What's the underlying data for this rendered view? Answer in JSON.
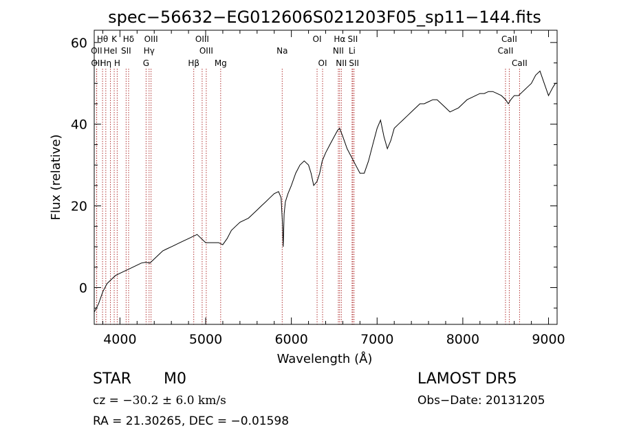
{
  "chart_data": {
    "type": "line",
    "title": "spec−56632−EG012606S021203F05_sp11−144.fits",
    "xlabel": "Wavelength (Å)",
    "ylabel": "Flux (relative)",
    "xlim": [
      3700,
      9100
    ],
    "ylim": [
      -9,
      63
    ],
    "xticks": [
      4000,
      5000,
      6000,
      7000,
      8000,
      9000
    ],
    "yticks": [
      0,
      20,
      40,
      60
    ],
    "grid": false,
    "series": [
      {
        "color": "#000000",
        "points": [
          [
            3700,
            -6
          ],
          [
            3750,
            -4
          ],
          [
            3800,
            -1
          ],
          [
            3850,
            1
          ],
          [
            3900,
            2
          ],
          [
            3950,
            3
          ],
          [
            4000,
            3.5
          ],
          [
            4050,
            4
          ],
          [
            4100,
            4.5
          ],
          [
            4150,
            5
          ],
          [
            4200,
            5.5
          ],
          [
            4250,
            6
          ],
          [
            4300,
            6.2
          ],
          [
            4350,
            6
          ],
          [
            4400,
            7
          ],
          [
            4450,
            8
          ],
          [
            4500,
            9
          ],
          [
            4550,
            9.5
          ],
          [
            4600,
            10
          ],
          [
            4650,
            10.5
          ],
          [
            4700,
            11
          ],
          [
            4750,
            11.5
          ],
          [
            4800,
            12
          ],
          [
            4850,
            12.5
          ],
          [
            4900,
            13
          ],
          [
            4950,
            12
          ],
          [
            5000,
            11
          ],
          [
            5050,
            11
          ],
          [
            5100,
            11
          ],
          [
            5150,
            11
          ],
          [
            5200,
            10.5
          ],
          [
            5250,
            12
          ],
          [
            5300,
            14
          ],
          [
            5350,
            15
          ],
          [
            5400,
            16
          ],
          [
            5450,
            16.5
          ],
          [
            5500,
            17
          ],
          [
            5550,
            18
          ],
          [
            5600,
            19
          ],
          [
            5650,
            20
          ],
          [
            5700,
            21
          ],
          [
            5750,
            22
          ],
          [
            5800,
            23
          ],
          [
            5850,
            23.5
          ],
          [
            5880,
            22
          ],
          [
            5895,
            16
          ],
          [
            5905,
            10
          ],
          [
            5915,
            18
          ],
          [
            5930,
            21
          ],
          [
            5960,
            23
          ],
          [
            6000,
            25
          ],
          [
            6050,
            28
          ],
          [
            6100,
            30
          ],
          [
            6150,
            31
          ],
          [
            6200,
            30
          ],
          [
            6230,
            28
          ],
          [
            6260,
            25
          ],
          [
            6300,
            26
          ],
          [
            6330,
            28
          ],
          [
            6360,
            31
          ],
          [
            6400,
            33
          ],
          [
            6450,
            35
          ],
          [
            6500,
            37
          ],
          [
            6540,
            38.5
          ],
          [
            6563,
            39
          ],
          [
            6600,
            37
          ],
          [
            6650,
            34
          ],
          [
            6700,
            32
          ],
          [
            6750,
            30
          ],
          [
            6800,
            28
          ],
          [
            6850,
            28
          ],
          [
            6900,
            31
          ],
          [
            6950,
            35
          ],
          [
            7000,
            39
          ],
          [
            7040,
            41
          ],
          [
            7080,
            37
          ],
          [
            7120,
            34
          ],
          [
            7160,
            36
          ],
          [
            7200,
            39
          ],
          [
            7250,
            40
          ],
          [
            7300,
            41
          ],
          [
            7350,
            42
          ],
          [
            7400,
            43
          ],
          [
            7450,
            44
          ],
          [
            7500,
            45
          ],
          [
            7550,
            45
          ],
          [
            7600,
            45.5
          ],
          [
            7650,
            46
          ],
          [
            7700,
            46
          ],
          [
            7750,
            45
          ],
          [
            7800,
            44
          ],
          [
            7850,
            43
          ],
          [
            7900,
            43.5
          ],
          [
            7950,
            44
          ],
          [
            8000,
            45
          ],
          [
            8050,
            46
          ],
          [
            8100,
            46.5
          ],
          [
            8150,
            47
          ],
          [
            8200,
            47.5
          ],
          [
            8250,
            47.5
          ],
          [
            8300,
            48
          ],
          [
            8350,
            48
          ],
          [
            8400,
            47.5
          ],
          [
            8450,
            47
          ],
          [
            8500,
            46
          ],
          [
            8530,
            45
          ],
          [
            8560,
            46
          ],
          [
            8600,
            47
          ],
          [
            8650,
            47
          ],
          [
            8700,
            48
          ],
          [
            8750,
            49
          ],
          [
            8800,
            50
          ],
          [
            8850,
            52
          ],
          [
            8900,
            53
          ],
          [
            8950,
            50
          ],
          [
            9000,
            47
          ],
          [
            9050,
            49
          ],
          [
            9080,
            50
          ],
          [
            9100,
            50
          ]
        ]
      }
    ],
    "emission_lines": [
      {
        "label": "Hθ",
        "wavelength": 3797,
        "row": 1
      },
      {
        "label": "K",
        "wavelength": 3933,
        "row": 1
      },
      {
        "label": "Hδ",
        "wavelength": 4101,
        "row": 1
      },
      {
        "label": "OIII",
        "wavelength": 4363,
        "row": 1
      },
      {
        "label": "OIII",
        "wavelength": 4959,
        "row": 1
      },
      {
        "label": "OI",
        "wavelength": 6300,
        "row": 1
      },
      {
        "label": "Hα",
        "wavelength": 6563,
        "row": 1
      },
      {
        "label": "SII",
        "wavelength": 6716,
        "row": 1
      },
      {
        "label": "CaII",
        "wavelength": 8542,
        "row": 1
      },
      {
        "label": "OII",
        "wavelength": 3727,
        "row": 2
      },
      {
        "label": "HeI",
        "wavelength": 3889,
        "row": 2
      },
      {
        "label": "SII",
        "wavelength": 4072,
        "row": 2
      },
      {
        "label": "Hγ",
        "wavelength": 4340,
        "row": 2
      },
      {
        "label": "OIII",
        "wavelength": 5007,
        "row": 2
      },
      {
        "label": "Na",
        "wavelength": 5893,
        "row": 2
      },
      {
        "label": "NII",
        "wavelength": 6548,
        "row": 2
      },
      {
        "label": "Li",
        "wavelength": 6708,
        "row": 2
      },
      {
        "label": "CaII",
        "wavelength": 8498,
        "row": 2
      },
      {
        "label": "OII",
        "wavelength": 3729,
        "row": 3
      },
      {
        "label": "Hη",
        "wavelength": 3835,
        "row": 3
      },
      {
        "label": "H",
        "wavelength": 3968,
        "row": 3
      },
      {
        "label": "G",
        "wavelength": 4305,
        "row": 3
      },
      {
        "label": "Hβ",
        "wavelength": 4861,
        "row": 3
      },
      {
        "label": "Mg",
        "wavelength": 5175,
        "row": 3
      },
      {
        "label": "OI",
        "wavelength": 6364,
        "row": 3
      },
      {
        "label": "NII",
        "wavelength": 6583,
        "row": 3
      },
      {
        "label": "SII",
        "wavelength": 6731,
        "row": 3
      },
      {
        "label": "CaII",
        "wavelength": 8662,
        "row": 3
      }
    ],
    "line_color": "#b03030"
  },
  "info": {
    "object_class": "STAR",
    "subclass": "M0",
    "survey": "LAMOST DR5",
    "cz_label": "cz = ",
    "cz_value": "−30.2 ± 6.0 km/s",
    "obs_date": "Obs−Date: 20131205",
    "coords": "RA =  21.30265, DEC =  −0.01598"
  }
}
